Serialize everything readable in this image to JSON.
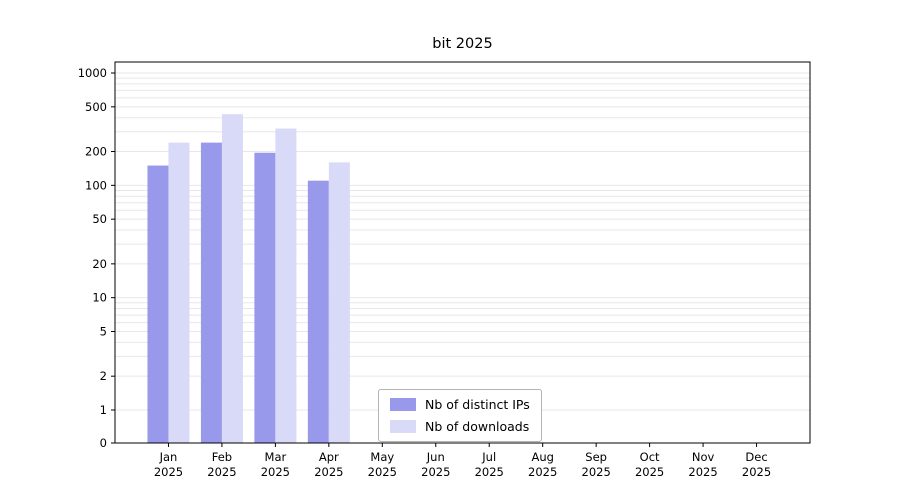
{
  "chart_data": {
    "type": "bar",
    "title": "bit 2025",
    "categories": [
      "Jan",
      "Feb",
      "Mar",
      "Apr",
      "May",
      "Jun",
      "Jul",
      "Aug",
      "Sep",
      "Oct",
      "Nov",
      "Dec"
    ],
    "year": "2025",
    "series": [
      {
        "name": "Nb of distinct IPs",
        "color": "#9999ec",
        "values": [
          150,
          240,
          195,
          110,
          0,
          0,
          0,
          0,
          0,
          0,
          0,
          0
        ]
      },
      {
        "name": "Nb of downloads",
        "color": "#d9d9f8",
        "values": [
          240,
          430,
          320,
          160,
          0,
          0,
          0,
          0,
          0,
          0,
          0,
          0
        ]
      }
    ],
    "y_ticks": [
      0,
      1,
      2,
      5,
      10,
      20,
      50,
      100,
      200,
      500,
      1000
    ],
    "y_scale": "log",
    "ylim": [
      0,
      1500
    ],
    "grid": true,
    "grid_color": "#e7e7e7",
    "legend_position": "lower center"
  }
}
